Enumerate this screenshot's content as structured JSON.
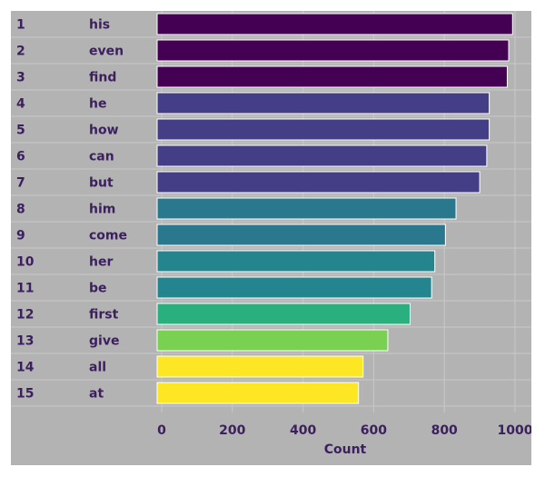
{
  "chart_data": {
    "type": "bar",
    "orientation": "horizontal",
    "title": "",
    "xlabel": "Count",
    "ylabel": "",
    "xlim": [
      0,
      1000
    ],
    "xticks": [
      0,
      200,
      400,
      600,
      800,
      1000
    ],
    "grid": true,
    "ranks": [
      "1",
      "2",
      "3",
      "4",
      "5",
      "6",
      "7",
      "8",
      "9",
      "10",
      "11",
      "12",
      "13",
      "14",
      "15"
    ],
    "categories": [
      "his",
      "even",
      "find",
      "he",
      "how",
      "can",
      "but",
      "him",
      "come",
      "her",
      "be",
      "first",
      "give",
      "all",
      "at"
    ],
    "values": [
      993,
      982,
      978,
      927,
      927,
      920,
      900,
      833,
      803,
      773,
      764,
      703,
      640,
      570,
      557
    ],
    "colors": [
      "#440154",
      "#440154",
      "#440154",
      "#433e85",
      "#433e85",
      "#433e85",
      "#433e85",
      "#2a788e",
      "#2a788e",
      "#25858e",
      "#25858e",
      "#2ab07f",
      "#7ad151",
      "#fde725",
      "#fde725"
    ]
  }
}
